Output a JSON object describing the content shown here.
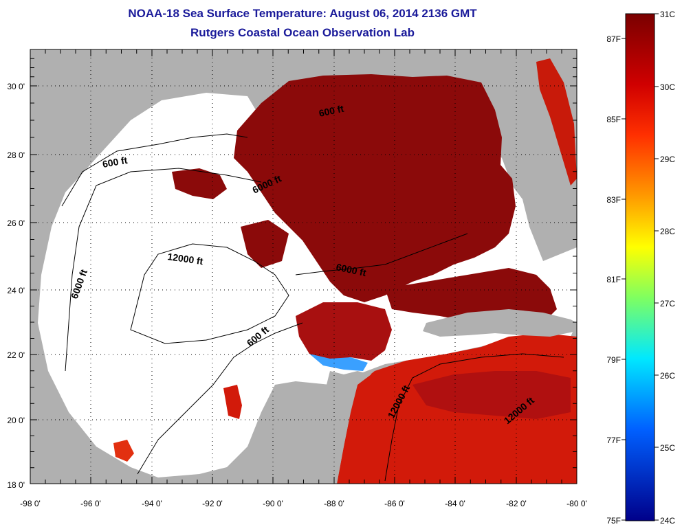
{
  "header": {
    "title": "NOAA-18 Sea Surface Temperature:  August 06, 2014 2136 GMT",
    "subtitle": "Rutgers Coastal Ocean Observation Lab"
  },
  "map": {
    "lon_labels": [
      "-98 0'",
      "-96 0'",
      "-94 0'",
      "-92 0'",
      "-90 0'",
      "-88 0'",
      "-86 0'",
      "-84 0'",
      "-82 0'",
      "-80 0'"
    ],
    "lat_labels": [
      "30 0'",
      "28 0'",
      "26 0'",
      "24 0'",
      "22 0'",
      "20 0'",
      "18 0'"
    ],
    "contour_labels": [
      "600 ft",
      "600 ft",
      "6000 ft",
      "6000 ft",
      "12000 ft",
      "6000 ft",
      "600 ft",
      "12000 ft",
      "12000 ft"
    ],
    "colors": {
      "land": "#b0b0b0",
      "no_data": "#ffffff",
      "warm": "#8b0a0a",
      "hot_red": "#d21a0a"
    }
  },
  "colorbar": {
    "celsius_labels": [
      "31C",
      "30C",
      "29C",
      "28C",
      "27C",
      "26C",
      "25C",
      "24C"
    ],
    "fahrenheit_labels": [
      "87F",
      "85F",
      "83F",
      "81F",
      "79F",
      "77F",
      "75F"
    ]
  }
}
